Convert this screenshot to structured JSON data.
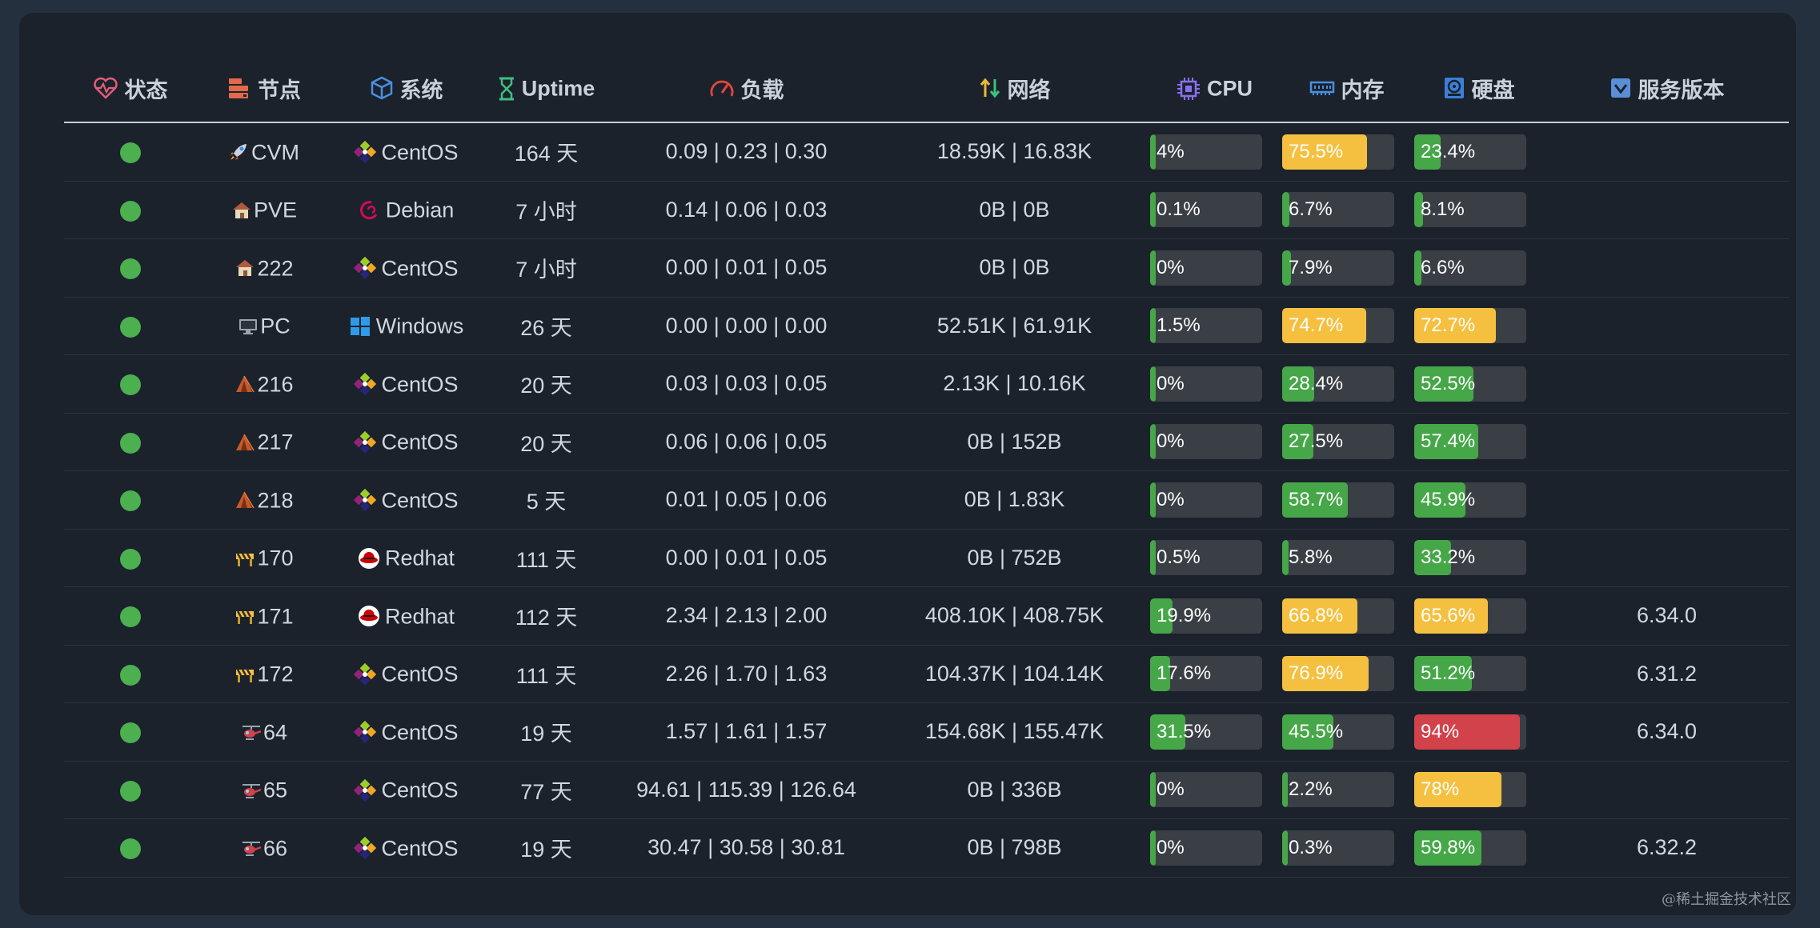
{
  "columns": {
    "status": "状态",
    "node": "节点",
    "os": "系统",
    "uptime": "Uptime",
    "load": "负载",
    "network": "网络",
    "cpu": "CPU",
    "memory": "内存",
    "disk": "硬盘",
    "version": "服务版本"
  },
  "colors": {
    "online": "#4caf50",
    "bar_green": "#46a748",
    "bar_yellow": "#f5c040",
    "bar_red": "#d2424b",
    "bar_track": "#3a3f45"
  },
  "rows": [
    {
      "node": "CVM",
      "node_icon": "rocket-icon",
      "os": "CentOS",
      "os_icon": "centos-icon",
      "uptime": "164 天",
      "load": "0.09 | 0.23 | 0.30",
      "network": "18.59K | 16.83K",
      "cpu": "4%",
      "cpu_value": 4,
      "memory": "75.5%",
      "memory_value": 75.5,
      "disk": "23.4%",
      "disk_value": 23.4,
      "version": ""
    },
    {
      "node": "PVE",
      "node_icon": "house-icon",
      "os": "Debian",
      "os_icon": "debian-icon",
      "uptime": "7 小时",
      "load": "0.14 | 0.06 | 0.03",
      "network": "0B | 0B",
      "cpu": "0.1%",
      "cpu_value": 0.1,
      "memory": "6.7%",
      "memory_value": 6.7,
      "disk": "8.1%",
      "disk_value": 8.1,
      "version": ""
    },
    {
      "node": "222",
      "node_icon": "house-icon",
      "os": "CentOS",
      "os_icon": "centos-icon",
      "uptime": "7 小时",
      "load": "0.00 | 0.01 | 0.05",
      "network": "0B | 0B",
      "cpu": "0%",
      "cpu_value": 0,
      "memory": "7.9%",
      "memory_value": 7.9,
      "disk": "6.6%",
      "disk_value": 6.6,
      "version": ""
    },
    {
      "node": "PC",
      "node_icon": "desktop-icon",
      "os": "Windows",
      "os_icon": "windows-icon",
      "uptime": "26 天",
      "load": "0.00 | 0.00 | 0.00",
      "network": "52.51K | 61.91K",
      "cpu": "1.5%",
      "cpu_value": 1.5,
      "memory": "74.7%",
      "memory_value": 74.7,
      "disk": "72.7%",
      "disk_value": 72.7,
      "version": ""
    },
    {
      "node": "216",
      "node_icon": "tent-icon",
      "os": "CentOS",
      "os_icon": "centos-icon",
      "uptime": "20 天",
      "load": "0.03 | 0.03 | 0.05",
      "network": "2.13K | 10.16K",
      "cpu": "0%",
      "cpu_value": 0,
      "memory": "28.4%",
      "memory_value": 28.4,
      "disk": "52.5%",
      "disk_value": 52.5,
      "version": ""
    },
    {
      "node": "217",
      "node_icon": "tent-icon",
      "os": "CentOS",
      "os_icon": "centos-icon",
      "uptime": "20 天",
      "load": "0.06 | 0.06 | 0.05",
      "network": "0B | 152B",
      "cpu": "0%",
      "cpu_value": 0,
      "memory": "27.5%",
      "memory_value": 27.5,
      "disk": "57.4%",
      "disk_value": 57.4,
      "version": ""
    },
    {
      "node": "218",
      "node_icon": "tent-icon",
      "os": "CentOS",
      "os_icon": "centos-icon",
      "uptime": "5 天",
      "load": "0.01 | 0.05 | 0.06",
      "network": "0B | 1.83K",
      "cpu": "0%",
      "cpu_value": 0,
      "memory": "58.7%",
      "memory_value": 58.7,
      "disk": "45.9%",
      "disk_value": 45.9,
      "version": ""
    },
    {
      "node": "170",
      "node_icon": "barrier-icon",
      "os": "Redhat",
      "os_icon": "redhat-icon",
      "uptime": "111 天",
      "load": "0.00 | 0.01 | 0.05",
      "network": "0B | 752B",
      "cpu": "0.5%",
      "cpu_value": 0.5,
      "memory": "5.8%",
      "memory_value": 5.8,
      "disk": "33.2%",
      "disk_value": 33.2,
      "version": ""
    },
    {
      "node": "171",
      "node_icon": "barrier-icon",
      "os": "Redhat",
      "os_icon": "redhat-icon",
      "uptime": "112 天",
      "load": "2.34 | 2.13 | 2.00",
      "network": "408.10K | 408.75K",
      "cpu": "19.9%",
      "cpu_value": 19.9,
      "memory": "66.8%",
      "memory_value": 66.8,
      "disk": "65.6%",
      "disk_value": 65.6,
      "version": "6.34.0"
    },
    {
      "node": "172",
      "node_icon": "barrier-icon",
      "os": "CentOS",
      "os_icon": "centos-icon",
      "uptime": "111 天",
      "load": "2.26 | 1.70 | 1.63",
      "network": "104.37K | 104.14K",
      "cpu": "17.6%",
      "cpu_value": 17.6,
      "memory": "76.9%",
      "memory_value": 76.9,
      "disk": "51.2%",
      "disk_value": 51.2,
      "version": "6.31.2"
    },
    {
      "node": "64",
      "node_icon": "helicopter-icon",
      "os": "CentOS",
      "os_icon": "centos-icon",
      "uptime": "19 天",
      "load": "1.57 | 1.61 | 1.57",
      "network": "154.68K | 155.47K",
      "cpu": "31.5%",
      "cpu_value": 31.5,
      "memory": "45.5%",
      "memory_value": 45.5,
      "disk": "94%",
      "disk_value": 94,
      "version": "6.34.0"
    },
    {
      "node": "65",
      "node_icon": "helicopter-icon",
      "os": "CentOS",
      "os_icon": "centos-icon",
      "uptime": "77 天",
      "load": "94.61 | 115.39 | 126.64",
      "network": "0B | 336B",
      "cpu": "0%",
      "cpu_value": 0,
      "memory": "2.2%",
      "memory_value": 2.2,
      "disk": "78%",
      "disk_value": 78,
      "version": ""
    },
    {
      "node": "66",
      "node_icon": "helicopter-icon",
      "os": "CentOS",
      "os_icon": "centos-icon",
      "uptime": "19 天",
      "load": "30.47 | 30.58 | 30.81",
      "network": "0B | 798B",
      "cpu": "0%",
      "cpu_value": 0,
      "memory": "0.3%",
      "memory_value": 0.3,
      "disk": "59.8%",
      "disk_value": 59.8,
      "version": "6.32.2"
    }
  ],
  "watermark": "@稀土掘金技术社区"
}
